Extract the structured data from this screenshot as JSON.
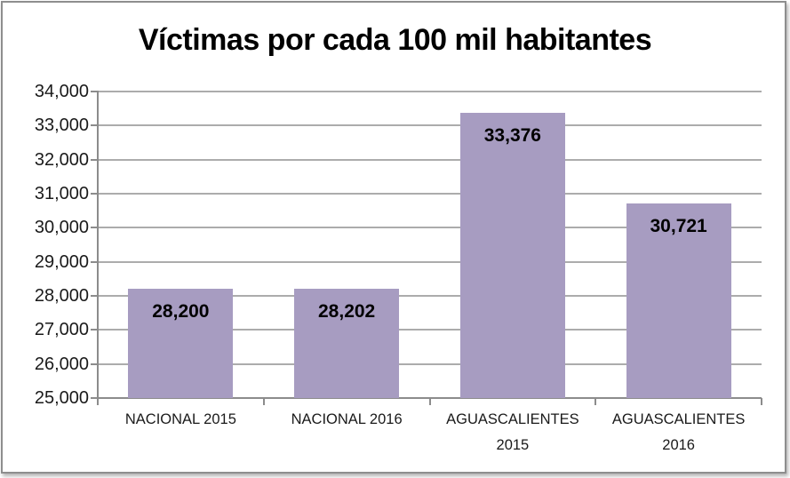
{
  "title": "Víctimas por cada 100 mil habitantes",
  "chart_data": {
    "type": "bar",
    "title": "Víctimas por cada 100 mil habitantes",
    "categories": [
      "NACIONAL 2015",
      "NACIONAL 2016",
      "AGUASCALIENTES 2015",
      "AGUASCALIENTES 2016"
    ],
    "values": [
      28200,
      28202,
      33376,
      30721
    ],
    "value_labels": [
      "28,200",
      "28,202",
      "33,376",
      "30,721"
    ],
    "ylim": [
      25000,
      34000
    ],
    "y_tick_step": 1000,
    "y_tick_labels": [
      "25,000",
      "26,000",
      "27,000",
      "28,000",
      "29,000",
      "30,000",
      "31,000",
      "32,000",
      "33,000",
      "34,000"
    ],
    "xlabel": "",
    "ylabel": "",
    "grid": true,
    "legend": "none",
    "colors": {
      "bar": "#A79CC1",
      "gridline": "#ACACAC",
      "axis": "#8C8C8C",
      "tick_text": "#1A1A1A",
      "data_label": "#000000",
      "title_text": "#000000",
      "frame_border": "#8E8E8E",
      "background": "#FFFFFF"
    }
  }
}
